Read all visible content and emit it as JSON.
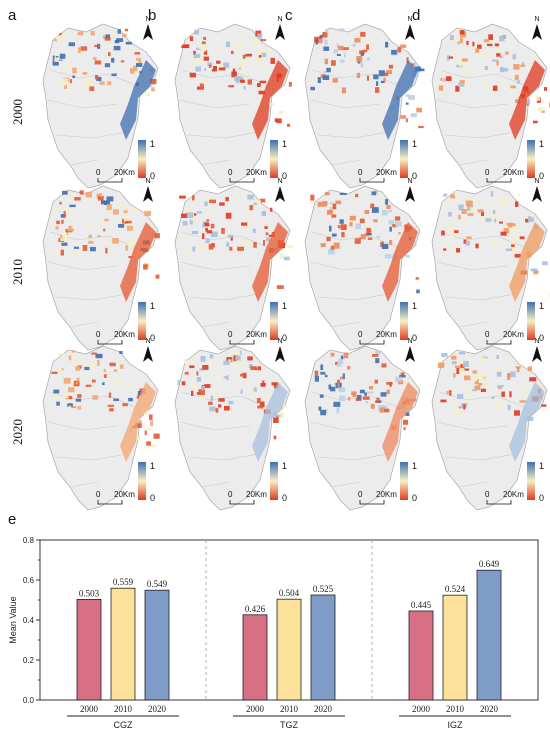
{
  "panels": {
    "labels": [
      "a",
      "b",
      "c",
      "d",
      "e"
    ]
  },
  "years": [
    "2000",
    "2010",
    "2020"
  ],
  "map": {
    "north_label": "N",
    "scale_zero": "0",
    "scale_distance": "20Km",
    "legend_max": "1",
    "legend_min": "0",
    "legend_colors": {
      "high": "#3f6fb1",
      "mid": "#f6f0c2",
      "low": "#e03a1e"
    }
  },
  "chart_data": {
    "type": "bar",
    "ylabel": "Mean Value",
    "ylim": [
      0,
      0.8
    ],
    "yticks": [
      "0.0",
      "0.2",
      "0.4",
      "0.6",
      "0.8"
    ],
    "groups": [
      {
        "name": "CGZ",
        "categories": [
          "2000",
          "2010",
          "2020"
        ],
        "values": [
          0.503,
          0.559,
          0.549
        ],
        "labels": [
          "0.503",
          "0.559",
          "0.549"
        ]
      },
      {
        "name": "TGZ",
        "categories": [
          "2000",
          "2010",
          "2020"
        ],
        "values": [
          0.426,
          0.504,
          0.525
        ],
        "labels": [
          "0.426",
          "0.504",
          "0.525"
        ]
      },
      {
        "name": "IGZ",
        "categories": [
          "2000",
          "2010",
          "2020"
        ],
        "values": [
          0.445,
          0.524,
          0.649
        ],
        "labels": [
          "0.445",
          "0.524",
          "0.649"
        ]
      }
    ],
    "colors": [
      "#d76f85",
      "#fbe19a",
      "#7f9cc9"
    ]
  }
}
